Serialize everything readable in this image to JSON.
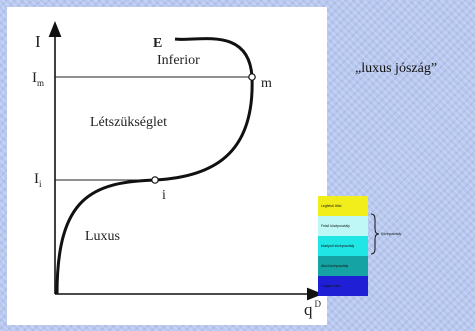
{
  "diagram": {
    "y_axis_label": "I",
    "x_axis_label": "q",
    "x_axis_superscript": "D",
    "curve_label": "E",
    "tick_labels": [
      {
        "main": "I",
        "sub": "m"
      },
      {
        "main": "I",
        "sub": "i"
      }
    ],
    "region_labels": [
      "Inferior",
      "Létszükséglet",
      "Luxus"
    ],
    "point_labels": [
      "m",
      "i"
    ]
  },
  "side_text": "„luxus jószág”",
  "legend": {
    "items": [
      {
        "label": "Legfelső ötöd",
        "color": "#f2ee1c"
      },
      {
        "label": "Felső középosztály",
        "color": "#bff7f7"
      },
      {
        "label": "középső középosztály",
        "color": "#21e6e6"
      },
      {
        "label": "Alsó középosztály",
        "color": "#15a3a3"
      },
      {
        "label": "Legalsó ötöd",
        "color": "#1f1fd6"
      }
    ],
    "brace_label": "Középosztály"
  }
}
